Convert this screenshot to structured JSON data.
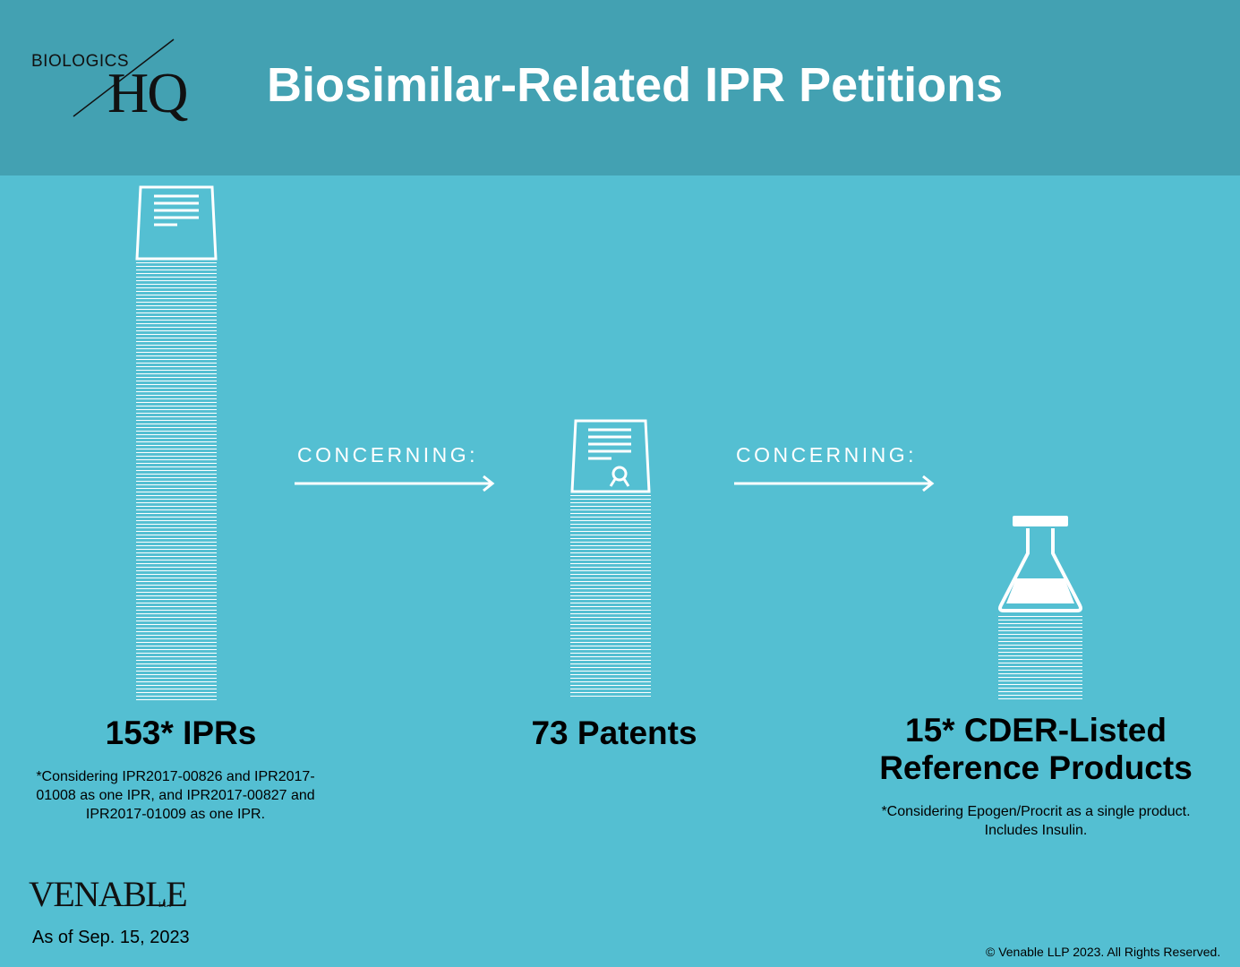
{
  "header": {
    "logo_top": "BIOLOGICS",
    "logo_main": "HQ",
    "title": "Biosimilar-Related IPR Petitions"
  },
  "flow": {
    "connector_1": "CONCERNING:",
    "connector_2": "CONCERNING:"
  },
  "columns": [
    {
      "stat": "153* IPRs",
      "note": "*Considering IPR2017-00826 and IPR2017-01008 as one IPR, and IPR2017-00827 and IPR2017-01009 as one IPR.",
      "icon": "document-icon"
    },
    {
      "stat": "73 Patents",
      "note": "",
      "icon": "patent-certificate-icon"
    },
    {
      "stat": "15* CDER-Listed Reference Products",
      "note": "*Considering Epogen/Procrit as a single product. Includes Insulin.",
      "icon": "flask-icon"
    }
  ],
  "footer": {
    "firm": "VENABLE",
    "firm_suffix": "LLP",
    "as_of": "As of Sep. 15, 2023",
    "copyright": "© Venable LLP 2023. All Rights Reserved."
  },
  "colors": {
    "header_bg": "#43a1b2",
    "body_bg": "#54bfd2",
    "accent": "#ffffff"
  }
}
